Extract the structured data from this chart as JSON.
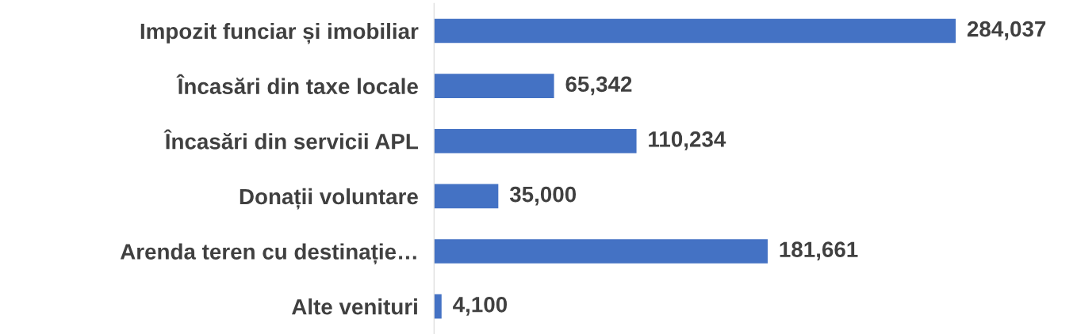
{
  "chart_data": {
    "type": "bar",
    "orientation": "horizontal",
    "categories": [
      "Impozit funciar și imobiliar",
      "Încasări din taxe locale",
      "Încasări din servicii APL",
      "Donații voluntare",
      "Arenda teren cu destinație…",
      "Alte venituri"
    ],
    "values": [
      284037,
      65342,
      110234,
      35000,
      181661,
      4100
    ],
    "value_labels": [
      "284,037",
      "65,342",
      "110,234",
      "35,000",
      "181,661",
      "4,100"
    ],
    "color": "#4472c4",
    "tick_labels": "y",
    "grid": false,
    "legend": false
  }
}
